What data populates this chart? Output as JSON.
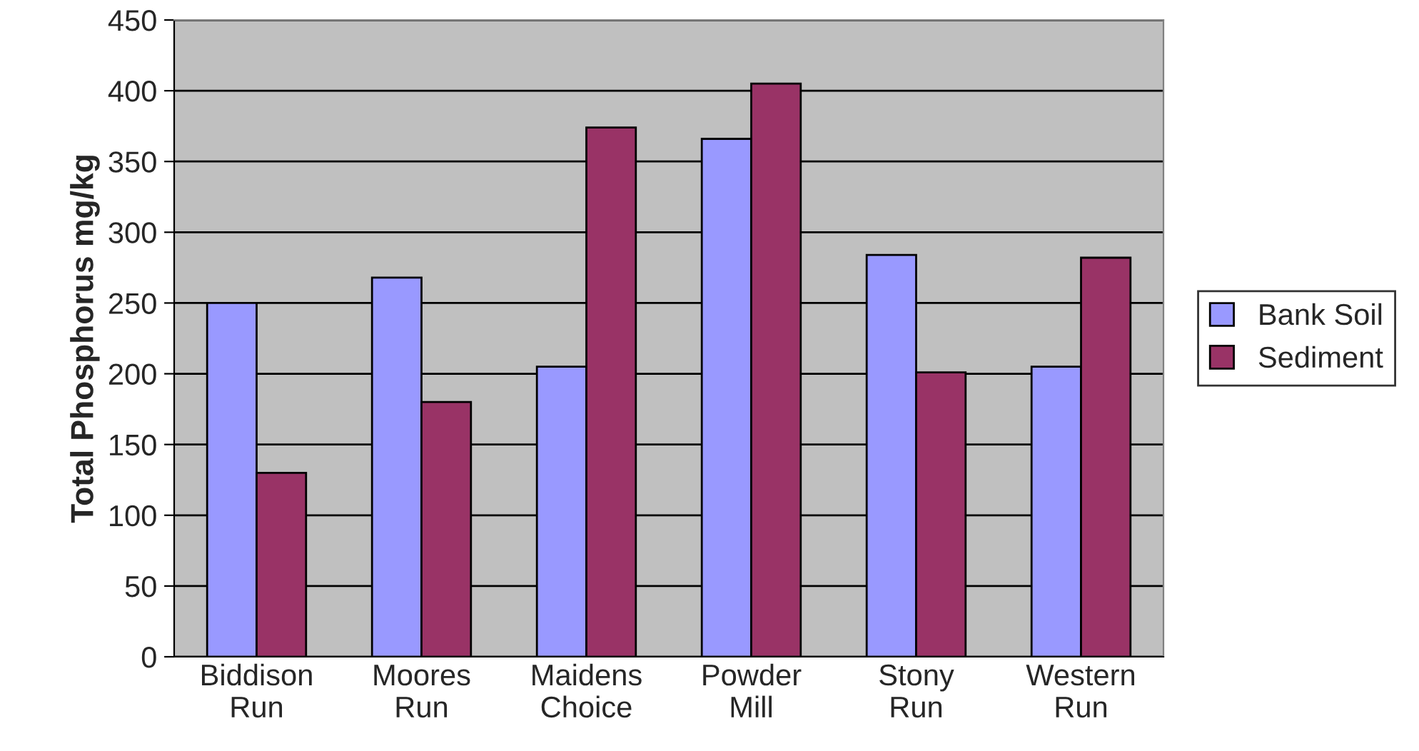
{
  "chart_data": {
    "type": "bar",
    "ylabel": "Total Phosphorus mg/kg",
    "categories": [
      "Biddison\nRun",
      "Moores\nRun",
      "Maidens\nChoice",
      "Powder\nMill",
      "Stony\nRun",
      "Western\nRun"
    ],
    "series": [
      {
        "name": "Bank Soil",
        "color": "#9999ff",
        "values": [
          250,
          268,
          205,
          366,
          284,
          205
        ]
      },
      {
        "name": "Sediment",
        "color": "#993366",
        "values": [
          130,
          180,
          374,
          405,
          201,
          282
        ]
      }
    ],
    "ylim": [
      0,
      450
    ],
    "yticks": [
      0,
      50,
      100,
      150,
      200,
      250,
      300,
      350,
      400,
      450
    ],
    "grid": "y",
    "legend": "right"
  }
}
